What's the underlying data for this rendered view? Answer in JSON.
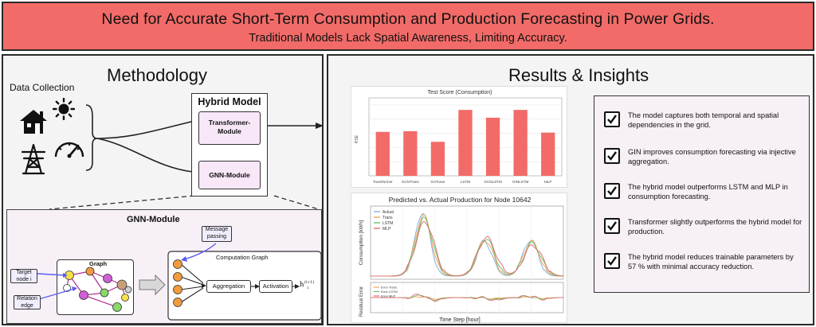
{
  "banner": {
    "title": "Need for Accurate Short-Term Consumption and Production Forecasting in Power Grids.",
    "subtitle": "Traditional Models Lack Spatial Awareness, Limiting Accuracy."
  },
  "methodology": {
    "title": "Methodology",
    "data_collection_label": "Data Collection",
    "icons": [
      "house-icon",
      "sun-icon",
      "power-tower-icon",
      "gauge-icon"
    ],
    "hybrid_model": {
      "title": "Hybrid Model",
      "transformer_label": "Transformer-\nModule",
      "gnn_label": "GNN-Module"
    },
    "gnn_detail": {
      "title": "GNN-Module",
      "graph_label": "Graph",
      "target_node_label": "Target\nnode i",
      "relation_edge_label": "Relation\nedge",
      "message_passing_label": "Message\npassing",
      "computation_graph_label": "Computation Graph",
      "aggregation_label": "Aggregation",
      "activation_label": "Activation",
      "output_label": "h",
      "output_sup": "(l+1)",
      "output_sub": "i",
      "colors": {
        "yellow": "#f6e04a",
        "orange": "#f19a3e",
        "purple": "#d05fd6",
        "green": "#88d96a",
        "tan": "#c7a07a",
        "grey": "#cfcfcf",
        "blue": "#5b5bf0"
      }
    }
  },
  "results": {
    "title": "Results & Insights",
    "chart_data": [
      {
        "type": "bar",
        "title": "Test Score (Consumption)",
        "ylabel": "RSE",
        "categories": [
          "Transformer",
          "GCNTrans",
          "GATrans",
          "LSTM",
          "GCNLSTM",
          "GINLSTM",
          "MLP"
        ],
        "values": [
          0.62,
          0.63,
          0.48,
          0.93,
          0.82,
          0.93,
          0.61
        ],
        "ylim": [
          0,
          1.1
        ],
        "color": "#f26b68",
        "grid": true
      },
      {
        "type": "line",
        "title": "Predicted vs. Actual Production for Node 10642",
        "ylabel": "Consumption [kWh]",
        "series": [
          {
            "name": "Actual",
            "color": "#7fb3e0"
          },
          {
            "name": "Trans",
            "color": "#f2a55c"
          },
          {
            "name": "LSTM",
            "color": "#6fbf6f"
          },
          {
            "name": "MLP",
            "color": "#e07070"
          }
        ],
        "grid": true
      },
      {
        "type": "line",
        "ylabel": "Residual Error",
        "xlabel": "Time Step [hour]",
        "series": [
          {
            "name": "Error Trans",
            "color": "#f2a55c"
          },
          {
            "name": "Error LSTM",
            "color": "#6fbf6f"
          },
          {
            "name": "Error MLP",
            "color": "#e07070"
          }
        ],
        "grid": true
      }
    ],
    "insights": [
      "The model captures both temporal and spatial dependencies in the grid.",
      "GIN improves consumption forecasting via injective aggregation.",
      "The hybrid model outperforms LSTM and MLP in consumption forecasting.",
      "Transformer slightly outperforms the hybrid model for production.",
      "The hybrid model reduces trainable parameters by 57 % with minimal accuracy reduction."
    ]
  }
}
